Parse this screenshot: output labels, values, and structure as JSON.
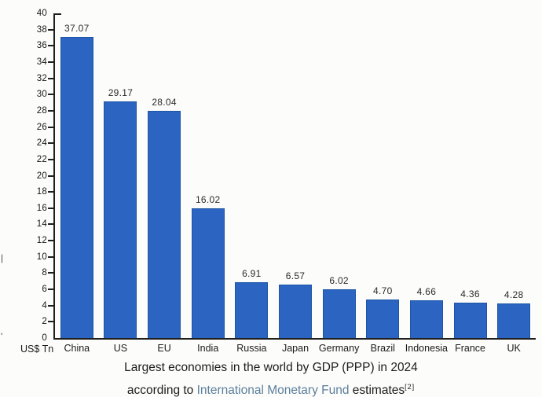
{
  "chart_data": {
    "type": "bar",
    "title": "Largest economies in the world by GDP (PPP) in 2024 according to International Monetary Fund estimates[2]",
    "categories": [
      "China",
      "US",
      "EU",
      "India",
      "Russia",
      "Japan",
      "Germany",
      "Brazil",
      "Indonesia",
      "France",
      "UK"
    ],
    "values": [
      37.07,
      29.17,
      28.04,
      16.02,
      6.91,
      6.57,
      6.02,
      4.7,
      4.66,
      4.36,
      4.28
    ],
    "value_labels": [
      "37.07",
      "29.17",
      "28.04",
      "16.02",
      "6.91",
      "6.57",
      "6.02",
      "4.70",
      "4.66",
      "4.36",
      "4.28"
    ],
    "xlabel": "",
    "ylabel": "US$ Tn",
    "ylim": [
      0,
      40
    ],
    "ytick_step": 2,
    "yticks": [
      0,
      2,
      4,
      6,
      8,
      10,
      12,
      14,
      16,
      18,
      20,
      22,
      24,
      26,
      28,
      30,
      32,
      34,
      36,
      38,
      40
    ],
    "grid": false,
    "legend": false,
    "bar_color": "#2b64c1",
    "bar_border_color": "#1d55a8",
    "axis_color": "#1f1f1f",
    "link_color": "#5b7f9d"
  },
  "caption": {
    "line1": "Largest economies in the world by GDP (PPP) in 2024",
    "line2_prefix": "according to ",
    "line2_link": "International Monetary Fund",
    "line2_suffix": " estimates",
    "line2_superscript": "[2]"
  },
  "artifacts": {
    "mark1": "|",
    "mark2": "'"
  }
}
